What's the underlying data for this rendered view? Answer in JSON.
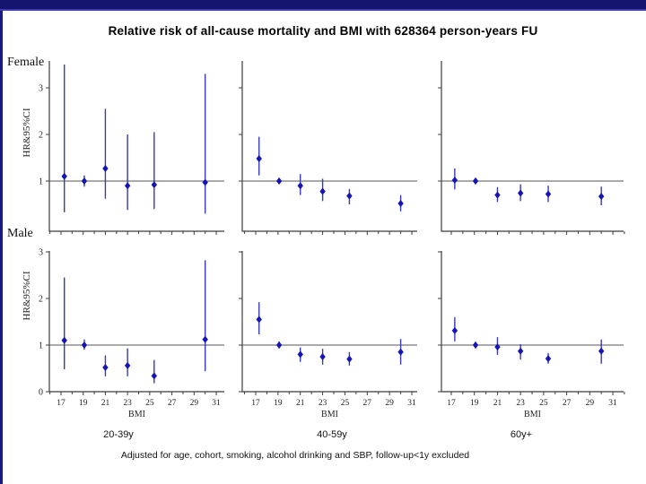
{
  "title": "Relative risk of all-cause mortality and BMI with 628364 person-years FU",
  "footnote": "Adjusted for age, cohort, smoking, alcohol drinking and SBP, follow-up<1y excluded",
  "rows": [
    {
      "label": "Female"
    },
    {
      "label": "Male"
    }
  ],
  "col_labels": [
    "20-39y",
    "40-59y",
    "60y+"
  ],
  "colors": {
    "top_bar": "#14146e",
    "left_border": "#191984",
    "axis": "#3c3c3c",
    "ref_line": "#555555",
    "error_bar": "#3a3ab8",
    "marker": "#1515b5",
    "tick_text": "#222222"
  },
  "chart_data": [
    {
      "type": "scatter",
      "sex": "Female",
      "age_group": "20-39y",
      "xlabel": "",
      "ylabel": "HR&95%CI",
      "ref_line": 1,
      "ylim": [
        0,
        3.6
      ],
      "yticks": [
        1,
        2,
        3
      ],
      "show_ytick_labels": true,
      "xlim": [
        15.8,
        32.2
      ],
      "xticks": [
        17,
        19,
        21,
        23,
        25,
        27,
        29,
        31
      ],
      "show_xtick_labels": false,
      "x": [
        17.3,
        19.1,
        21.0,
        23.0,
        25.4,
        30.0
      ],
      "hr": [
        1.1,
        1.0,
        1.27,
        0.9,
        0.92,
        0.97
      ],
      "lo": [
        0.33,
        0.88,
        0.62,
        0.38,
        0.4,
        0.3
      ],
      "hi": [
        3.5,
        1.12,
        2.55,
        2.0,
        2.05,
        3.3
      ]
    },
    {
      "type": "scatter",
      "sex": "Female",
      "age_group": "40-59y",
      "xlabel": "",
      "ylabel": "",
      "ref_line": 1,
      "ylim": [
        0,
        3.6
      ],
      "yticks": [
        1,
        2,
        3
      ],
      "show_ytick_labels": false,
      "xlim": [
        15.8,
        32.2
      ],
      "xticks": [
        17,
        19,
        21,
        23,
        25,
        27,
        29,
        31
      ],
      "show_xtick_labels": false,
      "x": [
        17.3,
        19.1,
        21.0,
        23.0,
        25.4,
        30.0
      ],
      "hr": [
        1.48,
        1.0,
        0.9,
        0.78,
        0.68,
        0.52
      ],
      "lo": [
        1.12,
        0.94,
        0.7,
        0.57,
        0.5,
        0.35
      ],
      "hi": [
        1.95,
        1.07,
        1.15,
        1.05,
        0.83,
        0.7
      ]
    },
    {
      "type": "scatter",
      "sex": "Female",
      "age_group": "60y+",
      "xlabel": "",
      "ylabel": "",
      "ref_line": 1,
      "ylim": [
        0,
        3.6
      ],
      "yticks": [
        1,
        2,
        3
      ],
      "show_ytick_labels": false,
      "xlim": [
        15.8,
        32.2
      ],
      "xticks": [
        17,
        19,
        21,
        23,
        25,
        27,
        29,
        31
      ],
      "show_xtick_labels": false,
      "x": [
        17.3,
        19.1,
        21.0,
        23.0,
        25.4,
        30.0
      ],
      "hr": [
        1.02,
        1.0,
        0.7,
        0.74,
        0.72,
        0.67
      ],
      "lo": [
        0.82,
        0.93,
        0.55,
        0.57,
        0.55,
        0.48
      ],
      "hi": [
        1.27,
        1.07,
        0.87,
        0.93,
        0.9,
        0.88
      ]
    },
    {
      "type": "scatter",
      "sex": "Male",
      "age_group": "20-39y",
      "xlabel": "BMI",
      "ylabel": "HR&95%CI",
      "ref_line": 1,
      "ylim": [
        0,
        3.0
      ],
      "yticks": [
        0,
        1,
        2,
        3
      ],
      "show_ytick_labels": true,
      "xlim": [
        15.8,
        32.2
      ],
      "xticks": [
        17,
        19,
        21,
        23,
        25,
        27,
        29,
        31
      ],
      "show_xtick_labels": true,
      "x": [
        17.3,
        19.1,
        21.0,
        23.0,
        25.4,
        30.0
      ],
      "hr": [
        1.1,
        1.0,
        0.52,
        0.56,
        0.34,
        1.12
      ],
      "lo": [
        0.48,
        0.9,
        0.33,
        0.33,
        0.18,
        0.44
      ],
      "hi": [
        2.45,
        1.12,
        0.78,
        0.93,
        0.68,
        2.82
      ]
    },
    {
      "type": "scatter",
      "sex": "Male",
      "age_group": "40-59y",
      "xlabel": "BMI",
      "ylabel": "",
      "ref_line": 1,
      "ylim": [
        0,
        3.0
      ],
      "yticks": [
        0,
        1,
        2,
        3
      ],
      "show_ytick_labels": false,
      "xlim": [
        15.8,
        32.2
      ],
      "xticks": [
        17,
        19,
        21,
        23,
        25,
        27,
        29,
        31
      ],
      "show_xtick_labels": true,
      "x": [
        17.3,
        19.1,
        21.0,
        23.0,
        25.4,
        30.0
      ],
      "hr": [
        1.55,
        1.0,
        0.8,
        0.75,
        0.7,
        0.85
      ],
      "lo": [
        1.23,
        0.93,
        0.64,
        0.58,
        0.56,
        0.58
      ],
      "hi": [
        1.92,
        1.08,
        0.95,
        0.92,
        0.85,
        1.13
      ]
    },
    {
      "type": "scatter",
      "sex": "Male",
      "age_group": "60y+",
      "xlabel": "BMI",
      "ylabel": "",
      "ref_line": 1,
      "ylim": [
        0,
        3.0
      ],
      "yticks": [
        0,
        1,
        2,
        3
      ],
      "show_ytick_labels": false,
      "xlim": [
        15.8,
        32.2
      ],
      "xticks": [
        17,
        19,
        21,
        23,
        25,
        27,
        29,
        31
      ],
      "show_xtick_labels": true,
      "x": [
        17.3,
        19.1,
        21.0,
        23.0,
        25.4,
        30.0
      ],
      "hr": [
        1.31,
        1.0,
        0.96,
        0.87,
        0.71,
        0.87
      ],
      "lo": [
        1.08,
        0.93,
        0.79,
        0.69,
        0.6,
        0.6
      ],
      "hi": [
        1.6,
        1.07,
        1.17,
        1.02,
        0.83,
        1.12
      ]
    }
  ]
}
